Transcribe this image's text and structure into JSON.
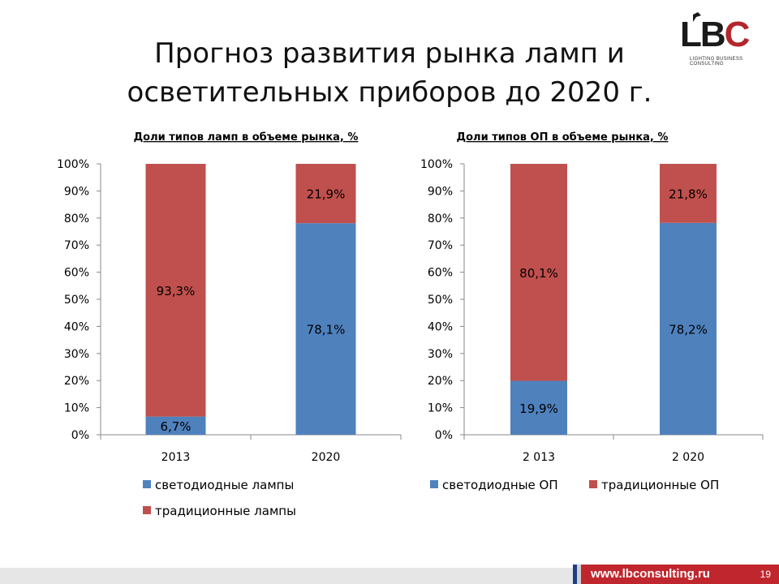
{
  "title_line1": "Прогноз развития рынка ламп и",
  "title_line2": "осветительных приборов до 2020 г.",
  "logo": {
    "text_main": "LB",
    "text_accent": "C",
    "subtitle": "LIGHTING BUSINESS CONSULTING"
  },
  "footer": {
    "url": "www.lbconsulting.ru",
    "page": "19"
  },
  "colors": {
    "led": "#4f81bd",
    "traditional": "#c0504d",
    "brand_red": "#c0262e"
  },
  "chart_data": [
    {
      "type": "bar",
      "stacked": true,
      "title": "Доли типов ламп в объеме рынка, %",
      "categories": [
        "2013",
        "2020"
      ],
      "ylim": [
        0,
        100
      ],
      "yticks": [
        "0%",
        "10%",
        "20%",
        "30%",
        "40%",
        "50%",
        "60%",
        "70%",
        "80%",
        "90%",
        "100%"
      ],
      "series": [
        {
          "name": "светодиодные лампы",
          "values": [
            6.7,
            78.1
          ],
          "labels": [
            "6,7%",
            "78,1%"
          ]
        },
        {
          "name": "традиционные лампы",
          "values": [
            93.3,
            21.9
          ],
          "labels": [
            "93,3%",
            "21,9%"
          ]
        }
      ],
      "legend": "bottom"
    },
    {
      "type": "bar",
      "stacked": true,
      "title": "Доли типов ОП в объеме рынка, %",
      "categories": [
        "2 013",
        "2 020"
      ],
      "ylim": [
        0,
        100
      ],
      "yticks": [
        "0%",
        "10%",
        "20%",
        "30%",
        "40%",
        "50%",
        "60%",
        "70%",
        "80%",
        "90%",
        "100%"
      ],
      "series": [
        {
          "name": "светодиодные ОП",
          "values": [
            19.9,
            78.2
          ],
          "labels": [
            "19,9%",
            "78,2%"
          ]
        },
        {
          "name": "традиционные ОП",
          "values": [
            80.1,
            21.8
          ],
          "labels": [
            "80,1%",
            "21,8%"
          ]
        }
      ],
      "legend": "bottom"
    }
  ]
}
